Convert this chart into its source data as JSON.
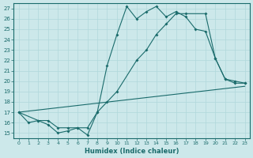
{
  "xlabel": "Humidex (Indice chaleur)",
  "bg_color": "#cce8ea",
  "grid_color": "#b0d8db",
  "line_color": "#1a6b6b",
  "xlim": [
    -0.5,
    23.5
  ],
  "ylim": [
    14.5,
    27.5
  ],
  "xticks": [
    0,
    1,
    2,
    3,
    4,
    5,
    6,
    7,
    8,
    9,
    10,
    11,
    12,
    13,
    14,
    15,
    16,
    17,
    18,
    19,
    20,
    21,
    22,
    23
  ],
  "yticks": [
    15,
    16,
    17,
    18,
    19,
    20,
    21,
    22,
    23,
    24,
    25,
    26,
    27
  ],
  "line1_x": [
    0,
    1,
    2,
    3,
    4,
    5,
    6,
    7,
    8,
    9,
    10,
    11,
    12,
    13,
    14,
    15,
    16,
    17,
    18,
    19,
    20,
    21,
    22,
    23
  ],
  "line1_y": [
    17.0,
    16.0,
    16.2,
    15.8,
    15.0,
    15.2,
    15.5,
    14.8,
    17.0,
    21.5,
    24.5,
    27.2,
    26.0,
    26.7,
    27.2,
    26.2,
    26.7,
    26.2,
    25.0,
    24.8,
    22.2,
    20.2,
    19.8,
    19.8
  ],
  "line2_x": [
    0,
    2,
    3,
    4,
    5,
    6,
    7,
    8,
    9,
    10,
    12,
    13,
    14,
    15,
    16,
    17,
    19,
    20,
    21,
    22,
    23
  ],
  "line2_y": [
    17.0,
    16.2,
    16.2,
    15.5,
    15.5,
    15.5,
    15.5,
    17.0,
    18.0,
    19.0,
    22.0,
    23.0,
    24.5,
    25.5,
    26.5,
    26.5,
    26.5,
    22.2,
    20.2,
    20.0,
    19.8
  ],
  "line3_x": [
    0,
    23
  ],
  "line3_y": [
    17.0,
    19.5
  ]
}
